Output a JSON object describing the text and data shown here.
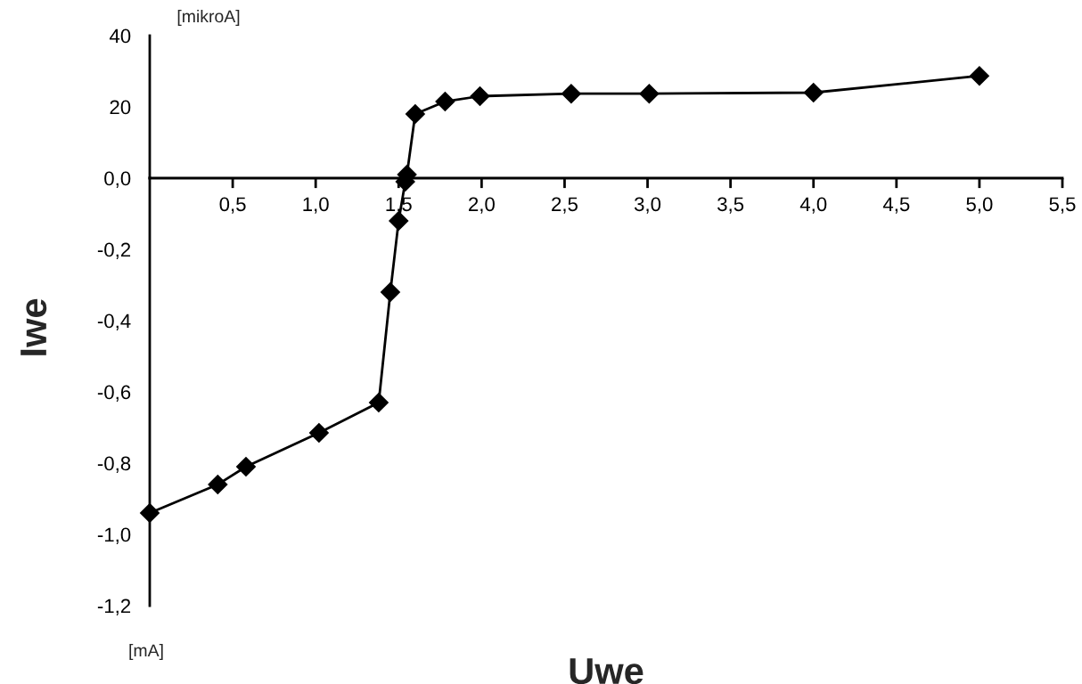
{
  "chart_data": [
    {
      "type": "line",
      "annotations": [
        "[mikroA]"
      ],
      "x": [
        1.55,
        1.6,
        1.78,
        1.99,
        2.54,
        3.01,
        4.0,
        5.0
      ],
      "series": [
        {
          "color": "#000000",
          "values": [
            1,
            18,
            21.5,
            23,
            23.7,
            23.7,
            24,
            28.7
          ]
        }
      ],
      "xlim": [
        0,
        5.5
      ],
      "ylim": [
        0,
        40
      ],
      "yticks": [
        20,
        40
      ],
      "tick_labels": "y",
      "grid": false,
      "marker": "diamond",
      "line_style": "solid"
    },
    {
      "type": "line",
      "xlabel": "Uwe",
      "ylabel": "Iwe",
      "annotations": [
        "[mA]"
      ],
      "x": [
        0,
        0.41,
        0.58,
        1.02,
        1.38,
        1.45,
        1.5,
        1.54
      ],
      "series": [
        {
          "color": "#000000",
          "values": [
            -0.94,
            -0.86,
            -0.81,
            -0.715,
            -0.63,
            -0.32,
            -0.12,
            -0.01
          ]
        }
      ],
      "xlim": [
        0,
        5.5
      ],
      "ylim": [
        -1.2,
        0
      ],
      "xticks": [
        {
          "value": 0.5,
          "label": "0,5"
        },
        {
          "value": 1.0,
          "label": "1,0"
        },
        {
          "value": 1.5,
          "label": "1,5"
        },
        {
          "value": 2.0,
          "label": "2,0"
        },
        {
          "value": 2.5,
          "label": "2,5"
        },
        {
          "value": 3.0,
          "label": "3,0"
        },
        {
          "value": 3.5,
          "label": "3,5"
        },
        {
          "value": 4.0,
          "label": "4,0"
        },
        {
          "value": 4.5,
          "label": "4,5"
        },
        {
          "value": 5.0,
          "label": "5,0"
        },
        {
          "value": 5.5,
          "label": "5,5"
        }
      ],
      "yticks": [
        {
          "value": 0.0,
          "label": "0,0"
        },
        {
          "value": -0.2,
          "label": "-0,2"
        },
        {
          "value": -0.4,
          "label": "-0,4"
        },
        {
          "value": -0.6,
          "label": "-0,6"
        },
        {
          "value": -0.8,
          "label": "-0,8"
        },
        {
          "value": -1.0,
          "label": "-1,0"
        },
        {
          "value": -1.2,
          "label": "-1,2"
        }
      ],
      "grid": false,
      "marker": "diamond",
      "line_style": "solid"
    }
  ]
}
